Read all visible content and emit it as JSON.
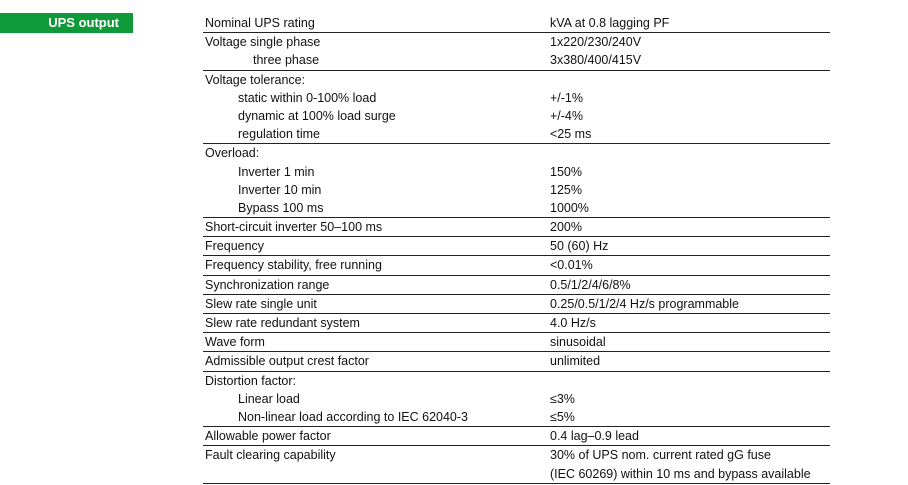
{
  "section_tag": "UPS output",
  "groups": [
    {
      "rows": [
        {
          "param": "Nominal UPS rating",
          "value": "kVA at 0.8 lagging PF",
          "indent": 0
        }
      ]
    },
    {
      "rows": [
        {
          "param": "Voltage single phase",
          "value": "1x220/230/240V",
          "indent": 0
        },
        {
          "param": "three phase",
          "value": "3x380/400/415V",
          "indent": 2
        }
      ]
    },
    {
      "rows": [
        {
          "param": "Voltage tolerance:",
          "value": "",
          "indent": 0
        },
        {
          "param": "static within 0-100% load",
          "value": "+/-1%",
          "indent": 1
        },
        {
          "param": "dynamic at 100% load surge",
          "value": "+/-4%",
          "indent": 1
        },
        {
          "param": "regulation time",
          "value": "<25 ms",
          "indent": 1
        }
      ]
    },
    {
      "rows": [
        {
          "param": "Overload:",
          "value": "",
          "indent": 0
        },
        {
          "param": "Inverter 1 min",
          "value": "150%",
          "indent": 1
        },
        {
          "param": "Inverter 10 min",
          "value": "125%",
          "indent": 1
        },
        {
          "param": "Bypass 100 ms",
          "value": "1000%",
          "indent": 1
        }
      ]
    },
    {
      "rows": [
        {
          "param": "Short-circuit inverter 50–100 ms",
          "value": "200%",
          "indent": 0
        }
      ]
    },
    {
      "rows": [
        {
          "param": "Frequency",
          "value": "50 (60) Hz",
          "indent": 0
        }
      ]
    },
    {
      "rows": [
        {
          "param": "Frequency stability, free running",
          "value": "<0.01%",
          "indent": 0
        }
      ]
    },
    {
      "rows": [
        {
          "param": "Synchronization range",
          "value": "0.5/1/2/4/6/8%",
          "indent": 0
        }
      ]
    },
    {
      "rows": [
        {
          "param": "Slew rate single unit",
          "value": "0.25/0.5/1/2/4 Hz/s programmable",
          "indent": 0
        }
      ]
    },
    {
      "rows": [
        {
          "param": "Slew rate redundant system",
          "value": "4.0 Hz/s",
          "indent": 0
        }
      ]
    },
    {
      "rows": [
        {
          "param": "Wave form",
          "value": "sinusoidal",
          "indent": 0
        }
      ]
    },
    {
      "rows": [
        {
          "param": "Admissible output crest factor",
          "value": "unlimited",
          "indent": 0
        }
      ]
    },
    {
      "rows": [
        {
          "param": "Distortion factor:",
          "value": "",
          "indent": 0
        },
        {
          "param": "Linear load",
          "value": "≤3%",
          "indent": 1
        },
        {
          "param": "Non-linear load according to IEC 62040-3",
          "value": "≤5%",
          "indent": 1
        }
      ]
    },
    {
      "rows": [
        {
          "param": "Allowable power factor",
          "value": "0.4 lag–0.9 lead",
          "indent": 0
        }
      ]
    },
    {
      "rows": [
        {
          "param": "Fault clearing capability",
          "value": "30% of UPS nom. current rated gG fuse",
          "indent": 0
        },
        {
          "param": "",
          "value": "(IEC 60269) within 10 ms and bypass available",
          "indent": 0
        }
      ]
    }
  ]
}
